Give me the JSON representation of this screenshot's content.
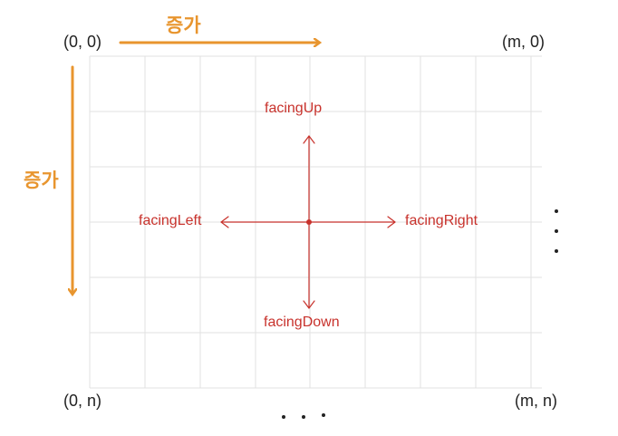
{
  "corners": {
    "top_left": "(0, 0)",
    "top_right": "(m, 0)",
    "bottom_left": "(0, n)",
    "bottom_right": "(m, n)"
  },
  "axes": {
    "x_label": "증가",
    "y_label": "증가",
    "arrow_color": "#e8952e"
  },
  "directions": {
    "up": "facingUp",
    "down": "facingDown",
    "left": "facingLeft",
    "right": "facingRight",
    "color": "#c8322c"
  },
  "grid": {
    "columns": 8,
    "rows": 6,
    "line_color": "#e2e2e2"
  },
  "ellipses": {
    "vertical": "⋮",
    "horizontal": "⋯"
  }
}
